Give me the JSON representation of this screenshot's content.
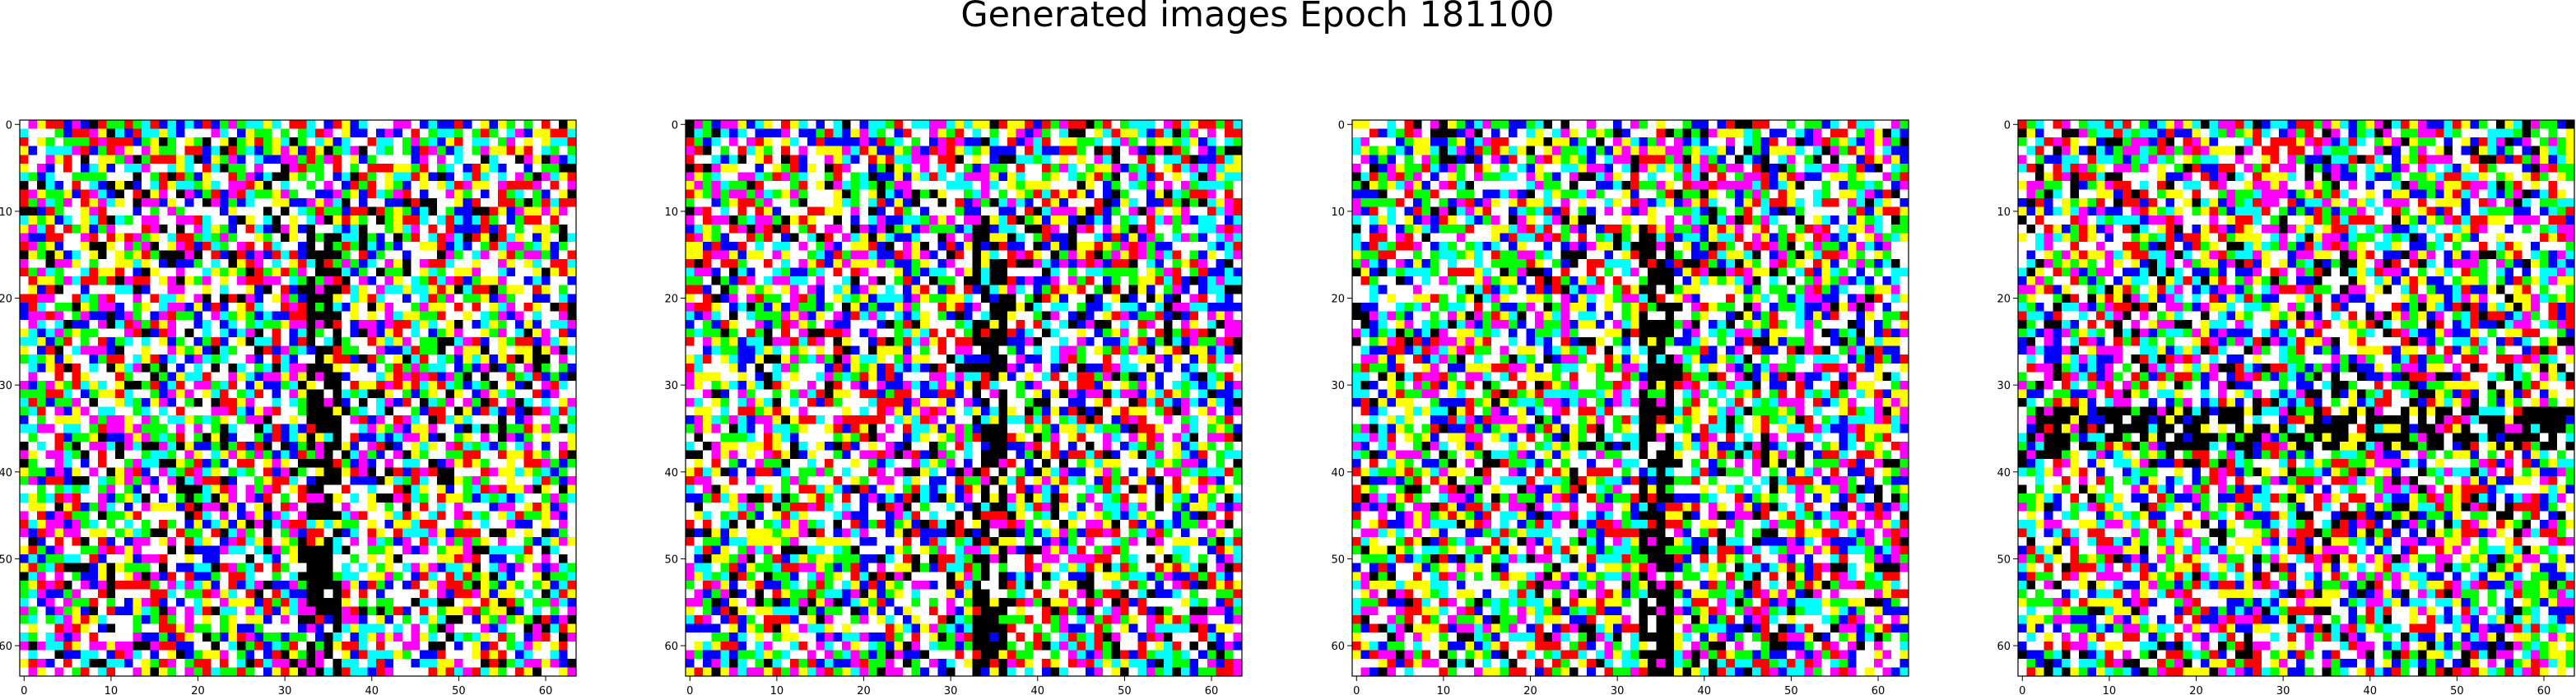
{
  "figure": {
    "title": "Generated images Epoch 181100"
  },
  "panels": [
    {
      "name": "generated-image-1",
      "x_ticks": [
        "0",
        "10",
        "20",
        "30",
        "40",
        "50",
        "60"
      ],
      "y_ticks": [
        "0",
        "10",
        "20",
        "30",
        "40",
        "50",
        "60"
      ]
    },
    {
      "name": "generated-image-2",
      "x_ticks": [
        "0",
        "10",
        "20",
        "30",
        "40",
        "50",
        "60"
      ],
      "y_ticks": [
        "0",
        "10",
        "20",
        "30",
        "40",
        "50",
        "60"
      ]
    },
    {
      "name": "generated-image-3",
      "x_ticks": [
        "0",
        "10",
        "20",
        "30",
        "40",
        "50",
        "60"
      ],
      "y_ticks": [
        "0",
        "10",
        "20",
        "30",
        "40",
        "50",
        "60"
      ]
    },
    {
      "name": "generated-image-4",
      "x_ticks": [
        "0",
        "10",
        "20",
        "30",
        "40",
        "50",
        "60"
      ],
      "y_ticks": [
        "0",
        "10",
        "20",
        "30",
        "40",
        "50",
        "60"
      ]
    }
  ],
  "image_grid": {
    "resolution": 64,
    "palette": [
      "#ff0000",
      "#00ff00",
      "#0000ff",
      "#ffff00",
      "#00ffff",
      "#ff00ff",
      "#ffffff",
      "#000000"
    ]
  }
}
